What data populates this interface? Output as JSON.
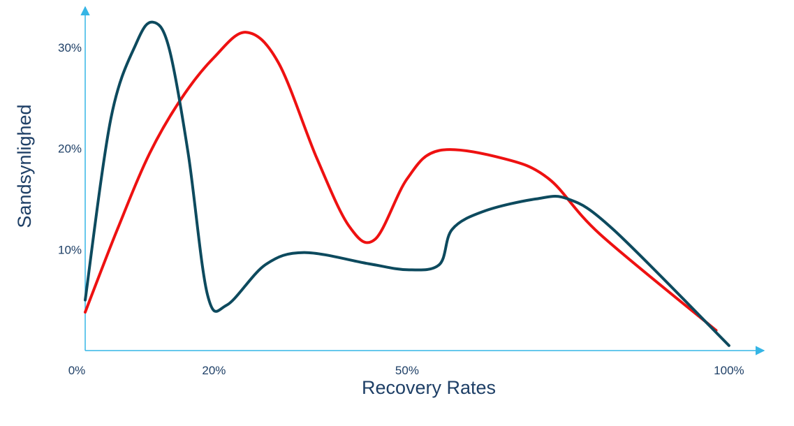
{
  "colors": {
    "axis": "#35b5e5",
    "text": "#1e3f66",
    "series_dark": "#0d4a5e",
    "series_red": "#ee1111"
  },
  "chart_data": {
    "type": "line",
    "title": "",
    "xlabel": "Recovery Rates",
    "ylabel": "Sandsynlighed",
    "xlim": [
      0,
      105
    ],
    "ylim": [
      0,
      34
    ],
    "x_ticks": [
      {
        "value": 0,
        "label": "0%"
      },
      {
        "value": 20,
        "label": "20%"
      },
      {
        "value": 50,
        "label": "50%"
      },
      {
        "value": 100,
        "label": "100%"
      }
    ],
    "y_ticks": [
      {
        "value": 10,
        "label": "10%"
      },
      {
        "value": 20,
        "label": "20%"
      },
      {
        "value": 30,
        "label": "30%"
      }
    ],
    "grid": false,
    "legend": "none",
    "series": [
      {
        "color_key": "series_dark",
        "points": [
          [
            0,
            5.0
          ],
          [
            4,
            23
          ],
          [
            8,
            30.5
          ],
          [
            10.5,
            32.5
          ],
          [
            13,
            30
          ],
          [
            16,
            19.5
          ],
          [
            19,
            5.5
          ],
          [
            22,
            4.5
          ],
          [
            28,
            8.5
          ],
          [
            34,
            9.7
          ],
          [
            44,
            8.6
          ],
          [
            50,
            8.0
          ],
          [
            55,
            8.5
          ],
          [
            57,
            12.0
          ],
          [
            62,
            13.8
          ],
          [
            70,
            15.0
          ],
          [
            75,
            15.0
          ],
          [
            82,
            12.0
          ],
          [
            100,
            0.5
          ]
        ]
      },
      {
        "color_key": "series_red",
        "points": [
          [
            0,
            3.8
          ],
          [
            5,
            12
          ],
          [
            10,
            19.5
          ],
          [
            15,
            25.0
          ],
          [
            20,
            29.0
          ],
          [
            25,
            31.5
          ],
          [
            30,
            28.5
          ],
          [
            36,
            19.0
          ],
          [
            41,
            12.3
          ],
          [
            45,
            11.0
          ],
          [
            50,
            17.0
          ],
          [
            55,
            19.8
          ],
          [
            65,
            19.0
          ],
          [
            72,
            17.0
          ],
          [
            80,
            11.5
          ],
          [
            98,
            2.0
          ]
        ]
      }
    ]
  }
}
